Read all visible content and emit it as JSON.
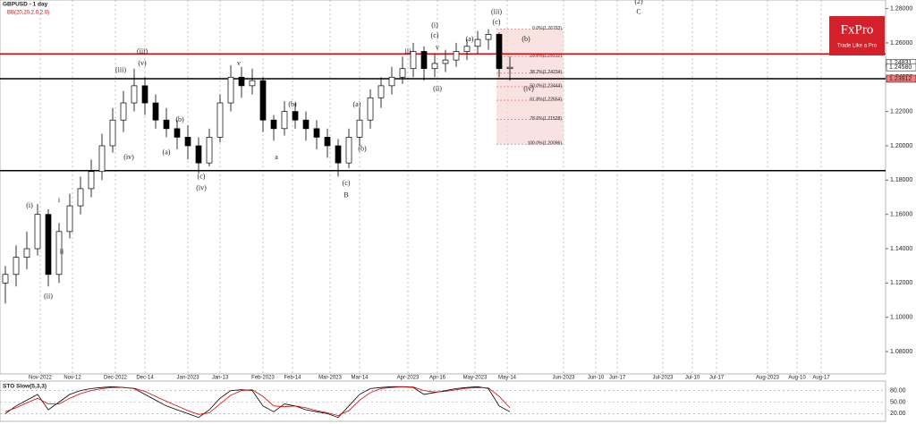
{
  "chart_data": [
    {
      "type": "candlestick",
      "title": "GBPUSD - 1 day",
      "subtitle": "BB(20,20,2.0,2.0)",
      "logo": "FxPro",
      "slogan": "Trade Like a Pro",
      "xlim": [
        0,
        330
      ],
      "ylim": [
        1.067,
        1.285
      ],
      "yticks": [
        {
          "value": 1.08,
          "label": "1.08000"
        },
        {
          "value": 1.1,
          "label": "1.10000"
        },
        {
          "value": 1.12,
          "label": "1.12000"
        },
        {
          "value": 1.14,
          "label": "1.14000"
        },
        {
          "value": 1.16,
          "label": "1.16000"
        },
        {
          "value": 1.18,
          "label": "1.18000"
        },
        {
          "value": 1.2,
          "label": "1.20000"
        },
        {
          "value": 1.22,
          "label": "1.22000"
        },
        {
          "value": 1.24,
          "label": "1.24000"
        },
        {
          "value": 1.26,
          "label": "1.26000"
        },
        {
          "value": 1.28,
          "label": "1.28000"
        }
      ],
      "xticks": [
        {
          "value": 15,
          "label": "Nov-2022"
        },
        {
          "value": 27,
          "label": "Nov-12"
        },
        {
          "value": 43,
          "label": "Dec-2022"
        },
        {
          "value": 54,
          "label": "Dec-14"
        },
        {
          "value": 70,
          "label": "Jan-2023"
        },
        {
          "value": 82,
          "label": "Jan-13"
        },
        {
          "value": 98,
          "label": "Feb-2023"
        },
        {
          "value": 109,
          "label": "Feb-14"
        },
        {
          "value": 123,
          "label": "Mar-2023"
        },
        {
          "value": 134,
          "label": "Mar-14"
        },
        {
          "value": 152,
          "label": "Apr-2023"
        },
        {
          "value": 163,
          "label": "Apr-16"
        },
        {
          "value": 177,
          "label": "May-2023"
        },
        {
          "value": 189,
          "label": "May-14"
        },
        {
          "value": 210,
          "label": "Jun-2023"
        },
        {
          "value": 222,
          "label": "Jun-10"
        },
        {
          "value": 230,
          "label": "Jun-17"
        },
        {
          "value": 247,
          "label": "Jul-2023"
        },
        {
          "value": 258,
          "label": "Jul-10"
        },
        {
          "value": 267,
          "label": "Jul-17"
        },
        {
          "value": 286,
          "label": "Aug-2023"
        },
        {
          "value": 297,
          "label": "Aug-10"
        },
        {
          "value": 306,
          "label": "Aug-17"
        }
      ],
      "grid": true,
      "x": [
        2,
        6,
        10,
        14,
        18,
        22,
        26,
        30,
        34,
        38,
        42,
        46,
        50,
        54,
        58,
        62,
        66,
        70,
        74,
        78,
        82,
        86,
        90,
        94,
        98,
        102,
        106,
        110,
        114,
        118,
        122,
        126,
        130,
        134,
        138,
        142,
        146,
        150,
        154,
        158,
        162,
        166,
        170,
        174,
        178,
        182,
        186,
        190
      ],
      "open": [
        1.12,
        1.125,
        1.135,
        1.14,
        1.16,
        1.125,
        1.15,
        1.165,
        1.175,
        1.185,
        1.2,
        1.215,
        1.225,
        1.235,
        1.225,
        1.215,
        1.21,
        1.205,
        1.2,
        1.19,
        1.205,
        1.225,
        1.24,
        1.235,
        1.238,
        1.215,
        1.21,
        1.22,
        1.215,
        1.21,
        1.205,
        1.2,
        1.19,
        1.205,
        1.215,
        1.228,
        1.235,
        1.24,
        1.245,
        1.255,
        1.245,
        1.248,
        1.25,
        1.255,
        1.258,
        1.262,
        1.265,
        1.245
      ],
      "high": [
        1.13,
        1.142,
        1.15,
        1.166,
        1.163,
        1.155,
        1.172,
        1.182,
        1.192,
        1.207,
        1.222,
        1.232,
        1.245,
        1.24,
        1.23,
        1.222,
        1.215,
        1.212,
        1.205,
        1.21,
        1.23,
        1.247,
        1.246,
        1.245,
        1.24,
        1.218,
        1.226,
        1.225,
        1.22,
        1.215,
        1.21,
        1.204,
        1.21,
        1.222,
        1.233,
        1.24,
        1.246,
        1.252,
        1.26,
        1.258,
        1.254,
        1.256,
        1.26,
        1.262,
        1.267,
        1.268,
        1.266,
        1.252
      ],
      "low": [
        1.108,
        1.118,
        1.128,
        1.136,
        1.118,
        1.12,
        1.146,
        1.16,
        1.17,
        1.18,
        1.196,
        1.208,
        1.22,
        1.218,
        1.21,
        1.205,
        1.198,
        1.192,
        1.184,
        1.188,
        1.202,
        1.22,
        1.228,
        1.23,
        1.208,
        1.203,
        1.206,
        1.21,
        1.203,
        1.198,
        1.193,
        1.182,
        1.187,
        1.2,
        1.21,
        1.222,
        1.23,
        1.236,
        1.24,
        1.238,
        1.24,
        1.243,
        1.246,
        1.25,
        1.254,
        1.256,
        1.24,
        1.238
      ],
      "close": [
        1.125,
        1.135,
        1.14,
        1.16,
        1.125,
        1.15,
        1.165,
        1.175,
        1.185,
        1.2,
        1.215,
        1.225,
        1.235,
        1.225,
        1.215,
        1.21,
        1.205,
        1.2,
        1.19,
        1.205,
        1.225,
        1.24,
        1.235,
        1.238,
        1.215,
        1.21,
        1.22,
        1.215,
        1.21,
        1.205,
        1.2,
        1.19,
        1.205,
        1.215,
        1.228,
        1.235,
        1.24,
        1.245,
        1.255,
        1.245,
        1.248,
        1.25,
        1.255,
        1.258,
        1.262,
        1.265,
        1.245,
        1.2458
      ],
      "levels": [
        {
          "value": 1.2536,
          "color": "#e00000"
        },
        {
          "value": 1.2391,
          "color": "#000000"
        },
        {
          "value": 1.1855,
          "color": "#000000"
        }
      ],
      "price_tags": [
        {
          "value": 1.24831,
          "label": "1.24831",
          "color": "#ffffff"
        },
        {
          "value": 1.2458,
          "label": "1.24580",
          "color": "#ffffff"
        },
        {
          "value": 1.23912,
          "label": "1.23912",
          "color": "#f08080"
        }
      ],
      "fib": {
        "x": [
          185,
          210
        ],
        "color": "#f6d5d5",
        "levels": [
          {
            "value": 1.26793,
            "label": "0.0%(1.26793)"
          },
          {
            "value": 1.25212,
            "label": "23.6%(1.25212)"
          },
          {
            "value": 1.24234,
            "label": "38.2%(1.24234)"
          },
          {
            "value": 1.23444,
            "label": "50.0%(1.23444)"
          },
          {
            "value": 1.22654,
            "label": "61.8%(1.22654)"
          },
          {
            "value": 1.21528,
            "label": "78.6%(1.21528)"
          },
          {
            "value": 1.20096,
            "label": "100.0%(1.20096)"
          }
        ]
      },
      "annotations": [
        {
          "text": "(i)",
          "x": 11,
          "y": 1.165
        },
        {
          "text": "(ii)",
          "x": 18,
          "y": 1.112
        },
        {
          "text": "i",
          "x": 22,
          "y": 1.168
        },
        {
          "text": "ii",
          "x": 23,
          "y": 1.138
        },
        {
          "text": "(iii)",
          "x": 45,
          "y": 1.244
        },
        {
          "text": "(iv)",
          "x": 48,
          "y": 1.193
        },
        {
          "text": "(v)",
          "x": 53,
          "y": 1.248
        },
        {
          "text": "(iii)",
          "x": 53,
          "y": 1.255
        },
        {
          "text": "(a)",
          "x": 62,
          "y": 1.196
        },
        {
          "text": "(b)",
          "x": 67,
          "y": 1.215
        },
        {
          "text": "(c)",
          "x": 75,
          "y": 1.182
        },
        {
          "text": "(iv)",
          "x": 75,
          "y": 1.175
        },
        {
          "text": "v",
          "x": 89,
          "y": 1.248
        },
        {
          "text": "a",
          "x": 103,
          "y": 1.193
        },
        {
          "text": "(b)",
          "x": 109,
          "y": 1.224
        },
        {
          "text": "(c)",
          "x": 129,
          "y": 1.178
        },
        {
          "text": "B",
          "x": 129,
          "y": 1.171
        },
        {
          "text": "(a)",
          "x": 133,
          "y": 1.224
        },
        {
          "text": "(b)",
          "x": 135,
          "y": 1.198
        },
        {
          "text": "iii",
          "x": 152,
          "y": 1.255
        },
        {
          "text": "(i)",
          "x": 162,
          "y": 1.27
        },
        {
          "text": "(c)",
          "x": 162,
          "y": 1.264
        },
        {
          "text": "v",
          "x": 163,
          "y": 1.257
        },
        {
          "text": "(ii)",
          "x": 163,
          "y": 1.233
        },
        {
          "text": "(a)",
          "x": 175,
          "y": 1.262
        },
        {
          "text": "(c)",
          "x": 185,
          "y": 1.272
        },
        {
          "text": "(iii)",
          "x": 185,
          "y": 1.278
        },
        {
          "text": "(b)",
          "x": 196,
          "y": 1.262
        },
        {
          "text": "(iv)",
          "x": 197,
          "y": 1.233
        },
        {
          "text": "(2)",
          "x": 238,
          "y": 1.284
        },
        {
          "text": "C",
          "x": 238,
          "y": 1.278
        }
      ]
    },
    {
      "type": "line",
      "title": "STO Slow(5,3,3)",
      "ylim": [
        0,
        100
      ],
      "yticks": [
        {
          "value": 80,
          "label": "80.00"
        },
        {
          "value": 50,
          "label": "50.00"
        },
        {
          "value": 20,
          "label": "20.00"
        }
      ],
      "x": [
        2,
        6,
        10,
        14,
        18,
        22,
        26,
        30,
        34,
        38,
        42,
        46,
        50,
        54,
        58,
        62,
        66,
        70,
        74,
        78,
        82,
        86,
        90,
        94,
        98,
        102,
        106,
        110,
        114,
        118,
        122,
        126,
        130,
        134,
        138,
        142,
        146,
        150,
        154,
        158,
        162,
        166,
        170,
        174,
        178,
        182,
        186,
        190
      ],
      "series": [
        {
          "color": "#000000",
          "values": [
            20,
            40,
            55,
            70,
            30,
            50,
            70,
            80,
            85,
            88,
            90,
            88,
            85,
            70,
            55,
            40,
            30,
            20,
            10,
            30,
            60,
            80,
            82,
            80,
            40,
            25,
            45,
            40,
            30,
            25,
            20,
            10,
            40,
            70,
            85,
            88,
            90,
            90,
            88,
            70,
            75,
            80,
            85,
            88,
            90,
            85,
            40,
            25
          ]
        },
        {
          "color": "#e00000",
          "values": [
            25,
            35,
            48,
            60,
            45,
            45,
            60,
            72,
            80,
            85,
            88,
            88,
            86,
            78,
            65,
            52,
            40,
            28,
            18,
            22,
            45,
            68,
            80,
            82,
            65,
            40,
            38,
            40,
            35,
            28,
            22,
            15,
            28,
            55,
            75,
            85,
            88,
            90,
            89,
            80,
            76,
            78,
            82,
            86,
            88,
            87,
            65,
            35
          ]
        }
      ]
    }
  ]
}
